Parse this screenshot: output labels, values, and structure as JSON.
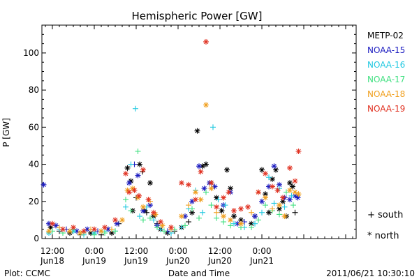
{
  "chart_data": {
    "type": "scatter",
    "title": "Hemispheric Power [GW]",
    "ylabel": "P [GW]",
    "xlabel": "Date and Time",
    "ylim": [
      0,
      115
    ],
    "yticks": [
      0,
      20,
      40,
      60,
      80,
      100
    ],
    "xlim_hours": [
      -15,
      75
    ],
    "xticks": [
      {
        "h": -12,
        "time": "12:00",
        "date": "Jun18"
      },
      {
        "h": 0,
        "time": "0:00",
        "date": "Jun19"
      },
      {
        "h": 12,
        "time": "12:00",
        "date": "Jun19"
      },
      {
        "h": 24,
        "time": "0:00",
        "date": "Jun20"
      },
      {
        "h": 36,
        "time": "12:00",
        "date": "Jun20"
      },
      {
        "h": 48,
        "time": "0:00",
        "date": "Jun21"
      }
    ],
    "legend_position": "right",
    "marker_legend": [
      {
        "symbol": "+",
        "label": "south"
      },
      {
        "symbol": "*",
        "label": "north"
      }
    ],
    "series": [
      {
        "name": "METP-02",
        "color": "#000000",
        "points": [
          [
            -12.5,
            6,
            "n"
          ],
          [
            -10,
            4,
            "s"
          ],
          [
            -7,
            3,
            "n"
          ],
          [
            -4,
            2,
            "s"
          ],
          [
            -1,
            3,
            "n"
          ],
          [
            2,
            2,
            "s"
          ],
          [
            5,
            3,
            "n"
          ],
          [
            7,
            8,
            "s"
          ],
          [
            9.5,
            38,
            "n"
          ],
          [
            10.5,
            31,
            "n"
          ],
          [
            11,
            15,
            "n"
          ],
          [
            12,
            22,
            "s"
          ],
          [
            13,
            40,
            "n"
          ],
          [
            13.8,
            36,
            "s"
          ],
          [
            14.5,
            15,
            "n"
          ],
          [
            15,
            14,
            "s"
          ],
          [
            16,
            30,
            "n"
          ],
          [
            17,
            12,
            "n"
          ],
          [
            18,
            8,
            "s"
          ],
          [
            19,
            5,
            "n"
          ],
          [
            21,
            3,
            "n"
          ],
          [
            23,
            4,
            "s"
          ],
          [
            25,
            6,
            "n"
          ],
          [
            27,
            9,
            "s"
          ],
          [
            28,
            14,
            "n"
          ],
          [
            29.5,
            58,
            "n"
          ],
          [
            31,
            39,
            "n"
          ],
          [
            32,
            40,
            "n"
          ],
          [
            33.5,
            30,
            "n"
          ],
          [
            35,
            22,
            "n"
          ],
          [
            36.5,
            15,
            "n"
          ],
          [
            38,
            37,
            "n"
          ],
          [
            39,
            27,
            "n"
          ],
          [
            40,
            12,
            "n"
          ],
          [
            42,
            10,
            "n"
          ],
          [
            45,
            8,
            "n"
          ],
          [
            46,
            12,
            "n"
          ],
          [
            48,
            37,
            "n"
          ],
          [
            49,
            24,
            "n"
          ],
          [
            50,
            14,
            "n"
          ],
          [
            51,
            32,
            "n"
          ],
          [
            52,
            37,
            "n"
          ],
          [
            53,
            16,
            "n"
          ],
          [
            54,
            20,
            "n"
          ],
          [
            55,
            12,
            "n"
          ],
          [
            56,
            30,
            "n"
          ],
          [
            56.8,
            28,
            "n"
          ],
          [
            57.5,
            14,
            "s"
          ]
        ]
      },
      {
        "name": "NOAA-15",
        "color": "#1c1cc0",
        "points": [
          [
            -14.5,
            29,
            "n"
          ],
          [
            -13,
            8,
            "n"
          ],
          [
            -11,
            7,
            "n"
          ],
          [
            -8,
            5,
            "s"
          ],
          [
            -5,
            4,
            "n"
          ],
          [
            -2,
            5,
            "n"
          ],
          [
            1,
            4,
            "s"
          ],
          [
            4,
            5,
            "n"
          ],
          [
            6.5,
            8,
            "n"
          ],
          [
            10,
            30,
            "n"
          ],
          [
            11.5,
            40,
            "s"
          ],
          [
            12.5,
            34,
            "n"
          ],
          [
            14,
            15,
            "n"
          ],
          [
            16,
            18,
            "n"
          ],
          [
            18,
            7,
            "n"
          ],
          [
            21,
            4,
            "s"
          ],
          [
            26,
            12,
            "n"
          ],
          [
            28,
            20,
            "n"
          ],
          [
            30,
            39,
            "n"
          ],
          [
            31.5,
            27,
            "n"
          ],
          [
            33,
            30,
            "n"
          ],
          [
            34.5,
            28,
            "n"
          ],
          [
            37,
            18,
            "n"
          ],
          [
            39,
            25,
            "n"
          ],
          [
            41,
            8,
            "n"
          ],
          [
            43,
            9,
            "s"
          ],
          [
            46,
            12,
            "n"
          ],
          [
            48,
            20,
            "n"
          ],
          [
            50,
            28,
            "n"
          ],
          [
            51.5,
            39,
            "n"
          ],
          [
            53,
            29,
            "n"
          ],
          [
            54.5,
            22,
            "n"
          ],
          [
            56,
            21,
            "n"
          ],
          [
            57.5,
            23,
            "n"
          ],
          [
            58.3,
            22,
            "n"
          ]
        ]
      },
      {
        "name": "NOAA-16",
        "color": "#20c8e0",
        "points": [
          [
            -13,
            3,
            "n"
          ],
          [
            -10,
            5,
            "s"
          ],
          [
            -6,
            4,
            "n"
          ],
          [
            -3,
            2,
            "s"
          ],
          [
            0,
            3,
            "n"
          ],
          [
            3,
            4,
            "s"
          ],
          [
            6,
            4,
            "s"
          ],
          [
            9,
            17,
            "s"
          ],
          [
            10.5,
            40,
            "s"
          ],
          [
            11.8,
            70,
            "s"
          ],
          [
            13,
            12,
            "s"
          ],
          [
            15,
            17,
            "s"
          ],
          [
            17,
            10,
            "s"
          ],
          [
            19,
            5,
            "s"
          ],
          [
            22,
            3,
            "s"
          ],
          [
            25,
            6,
            "s"
          ],
          [
            27,
            16,
            "s"
          ],
          [
            29,
            26,
            "s"
          ],
          [
            31,
            14,
            "s"
          ],
          [
            34,
            60,
            "s"
          ],
          [
            35.5,
            21,
            "s"
          ],
          [
            37.5,
            18,
            "s"
          ],
          [
            40,
            8,
            "s"
          ],
          [
            43,
            6,
            "s"
          ],
          [
            46,
            8,
            "s"
          ],
          [
            48,
            14,
            "s"
          ],
          [
            50,
            33,
            "s"
          ],
          [
            51.5,
            19,
            "s"
          ],
          [
            53,
            27,
            "s"
          ],
          [
            54.5,
            17,
            "s"
          ],
          [
            56.5,
            23,
            "s"
          ]
        ]
      },
      {
        "name": "NOAA-17",
        "color": "#40e080",
        "points": [
          [
            -12,
            4,
            "s"
          ],
          [
            -9,
            3,
            "s"
          ],
          [
            -6,
            5,
            "s"
          ],
          [
            -3,
            3,
            "s"
          ],
          [
            0,
            2,
            "s"
          ],
          [
            3,
            3,
            "s"
          ],
          [
            6,
            4,
            "s"
          ],
          [
            9,
            21,
            "s"
          ],
          [
            10.5,
            15,
            "s"
          ],
          [
            12.5,
            47,
            "s"
          ],
          [
            14,
            10,
            "s"
          ],
          [
            16,
            11,
            "s"
          ],
          [
            18,
            6,
            "s"
          ],
          [
            20,
            4,
            "s"
          ],
          [
            23,
            5,
            "s"
          ],
          [
            26,
            7,
            "s"
          ],
          [
            28,
            16,
            "s"
          ],
          [
            30,
            11,
            "s"
          ],
          [
            32,
            25,
            "s"
          ],
          [
            33.5,
            18,
            "s"
          ],
          [
            35,
            11,
            "s"
          ],
          [
            37,
            9,
            "s"
          ],
          [
            39,
            7,
            "s"
          ],
          [
            42,
            6,
            "s"
          ],
          [
            45,
            6,
            "s"
          ],
          [
            47,
            10,
            "s"
          ],
          [
            49,
            18,
            "s"
          ],
          [
            51,
            15,
            "s"
          ],
          [
            53,
            13,
            "s"
          ],
          [
            55,
            25,
            "s"
          ],
          [
            57,
            18,
            "s"
          ]
        ]
      },
      {
        "name": "NOAA-18",
        "color": "#f0a020",
        "points": [
          [
            -13,
            4,
            "n"
          ],
          [
            -10,
            6,
            "s"
          ],
          [
            -7,
            4,
            "n"
          ],
          [
            -4,
            3,
            "n"
          ],
          [
            -1,
            5,
            "s"
          ],
          [
            2,
            4,
            "n"
          ],
          [
            5,
            5,
            "s"
          ],
          [
            8,
            10,
            "n"
          ],
          [
            9.5,
            26,
            "n"
          ],
          [
            11,
            27,
            "n"
          ],
          [
            12.5,
            22,
            "n"
          ],
          [
            14,
            17,
            "n"
          ],
          [
            16,
            20,
            "s"
          ],
          [
            17.5,
            13,
            "n"
          ],
          [
            19.5,
            7,
            "n"
          ],
          [
            22,
            5,
            "s"
          ],
          [
            25,
            12,
            "n"
          ],
          [
            27,
            18,
            "s"
          ],
          [
            29,
            25,
            "n"
          ],
          [
            30.5,
            21,
            "n"
          ],
          [
            32,
            72,
            "n"
          ],
          [
            33.5,
            27,
            "n"
          ],
          [
            35,
            14,
            "s"
          ],
          [
            37,
            12,
            "n"
          ],
          [
            39,
            10,
            "n"
          ],
          [
            42,
            8,
            "n"
          ],
          [
            45,
            14,
            "s"
          ],
          [
            47,
            25,
            "n"
          ],
          [
            49,
            22,
            "n"
          ],
          [
            51,
            16,
            "s"
          ],
          [
            53,
            18,
            "n"
          ],
          [
            54.5,
            12,
            "n"
          ],
          [
            56,
            26,
            "n"
          ],
          [
            57.5,
            25,
            "n"
          ],
          [
            58.5,
            24,
            "n"
          ]
        ]
      },
      {
        "name": "NOAA-19",
        "color": "#e03020",
        "points": [
          [
            -12,
            8,
            "n"
          ],
          [
            -9,
            5,
            "n"
          ],
          [
            -6,
            6,
            "n"
          ],
          [
            -3,
            4,
            "n"
          ],
          [
            0,
            5,
            "n"
          ],
          [
            3,
            6,
            "n"
          ],
          [
            6,
            10,
            "n"
          ],
          [
            9,
            35,
            "n"
          ],
          [
            10,
            25,
            "n"
          ],
          [
            11.5,
            26,
            "n"
          ],
          [
            12.8,
            23,
            "n"
          ],
          [
            14,
            37,
            "n"
          ],
          [
            15.5,
            21,
            "n"
          ],
          [
            17,
            14,
            "n"
          ],
          [
            19,
            9,
            "n"
          ],
          [
            22,
            6,
            "n"
          ],
          [
            25,
            30,
            "n"
          ],
          [
            27,
            29,
            "n"
          ],
          [
            29,
            21,
            "n"
          ],
          [
            30.5,
            36,
            "n"
          ],
          [
            32,
            106,
            "n"
          ],
          [
            33.5,
            30,
            "n"
          ],
          [
            35,
            17,
            "n"
          ],
          [
            37,
            22,
            "n"
          ],
          [
            38.5,
            25,
            "n"
          ],
          [
            40,
            15,
            "n"
          ],
          [
            42,
            16,
            "n"
          ],
          [
            44,
            17,
            "n"
          ],
          [
            47,
            25,
            "n"
          ],
          [
            49,
            35,
            "n"
          ],
          [
            51,
            28,
            "n"
          ],
          [
            52.5,
            26,
            "n"
          ],
          [
            54,
            22,
            "n"
          ],
          [
            56,
            38,
            "n"
          ],
          [
            57.5,
            31,
            "n"
          ],
          [
            58.5,
            47,
            "n"
          ]
        ]
      }
    ]
  },
  "footer": {
    "plot_credit": "Plot: CCMC",
    "timestamp": "2011/06/21 10:30:10"
  }
}
